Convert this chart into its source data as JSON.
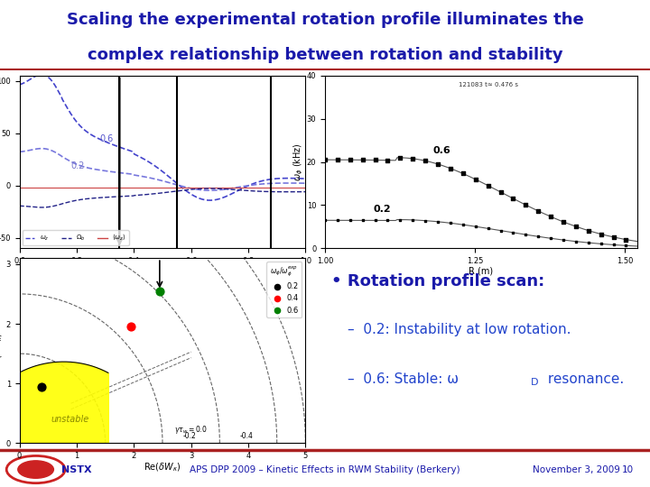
{
  "title_line1": "Scaling the experimental rotation profile illuminates the",
  "title_line2": "complex relationship between rotation and stability",
  "title_color": "#1a1aaa",
  "title_bg_color": "#dce6f1",
  "bg_color": "#ffffff",
  "footer_line_color": "#aa2222",
  "footer_bg_color": "#ffffff",
  "footer_text_left": "NSTX",
  "footer_text_center": "APS DPP 2009 – Kinetic Effects in RWM Stability (Berkery)",
  "footer_text_right": "November 3, 2009",
  "footer_page": "10",
  "footer_text_color": "#1a1aaa",
  "bullet_text": "Rotation profile scan:",
  "bullet_color": "#1a1aaa",
  "sub1": "0.2: Instability at low rotation.",
  "sub2_part1": "0.6: Stable: ω",
  "sub2_sub": "D",
  "sub2_part2": " resonance.",
  "sub_color": "#2244cc",
  "nstx_logo_color": "#cc2222",
  "top_left_plot_bg": "#f5f5f5",
  "top_right_plot_bg": "#f5f5f5",
  "bottom_left_plot_bg": "#f5f5f5"
}
